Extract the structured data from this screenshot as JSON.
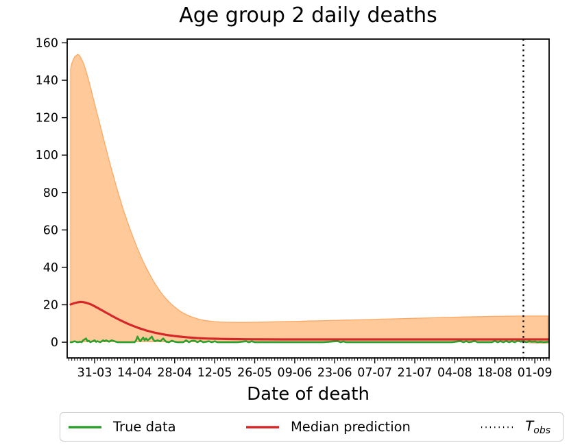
{
  "title": "Age group 2 daily deaths",
  "xlabel": "Date of death",
  "colors": {
    "true_data": "#2ca02c",
    "median_prediction": "#d62728",
    "band_fill": "#ff7f0e",
    "band_edge": "#fca55f",
    "tobs_line": "#000000",
    "axis": "#000000",
    "legend_border": "#cccccc"
  },
  "legend": {
    "items": [
      {
        "label": "True data",
        "color": "#2ca02c",
        "style": "solid"
      },
      {
        "label": "Median prediction",
        "color": "#d62728",
        "style": "solid"
      },
      {
        "label": "T",
        "subscript": "obs",
        "color": "#000000",
        "style": "dotted"
      }
    ]
  },
  "chart_data": {
    "type": "line",
    "title": "Age group 2 daily deaths",
    "xlabel": "Date of death",
    "ylabel": "",
    "grid": false,
    "legend_position": "bottom",
    "xlim_days": [
      -9.6,
      159.0
    ],
    "ylim": [
      -8.4,
      162.0
    ],
    "y_ticks": [
      0,
      20,
      40,
      60,
      80,
      100,
      120,
      140,
      160
    ],
    "x_tick_days": [
      0,
      14,
      28,
      42,
      56,
      70,
      84,
      98,
      112,
      126,
      140,
      154
    ],
    "x_tick_labels": [
      "31-03",
      "14-04",
      "28-04",
      "12-05",
      "26-05",
      "09-06",
      "23-06",
      "07-07",
      "21-07",
      "04-08",
      "18-08",
      "01-09"
    ],
    "x_minor_tick_every_days": 1,
    "t_obs_day": 150,
    "band": {
      "name": "prediction interval",
      "fill": "#ff7f0e",
      "opacity": 0.42,
      "edge": "#fca55f",
      "upper": [
        [
          -8.4,
          146
        ],
        [
          -8,
          149
        ],
        [
          -7,
          152.5
        ],
        [
          -6,
          153.8
        ],
        [
          -5.5,
          153.5
        ],
        [
          -5,
          152.5
        ],
        [
          -4,
          149.5
        ],
        [
          -3,
          145
        ],
        [
          -2,
          139.5
        ],
        [
          -1,
          133.5
        ],
        [
          0,
          127.5
        ],
        [
          1,
          121.5
        ],
        [
          2,
          115.5
        ],
        [
          3,
          109.5
        ],
        [
          4,
          103.5
        ],
        [
          5,
          97.5
        ],
        [
          6,
          92
        ],
        [
          7,
          86.5
        ],
        [
          8,
          81
        ],
        [
          9,
          76
        ],
        [
          10,
          71
        ],
        [
          11,
          66.5
        ],
        [
          12,
          62
        ],
        [
          13,
          58
        ],
        [
          14,
          54
        ],
        [
          15,
          50
        ],
        [
          16,
          46.5
        ],
        [
          17,
          43
        ],
        [
          18,
          40
        ],
        [
          19,
          37
        ],
        [
          20,
          34.2
        ],
        [
          21,
          31.6
        ],
        [
          22,
          29.2
        ],
        [
          23,
          27
        ],
        [
          24,
          25
        ],
        [
          25,
          23.2
        ],
        [
          26,
          21.6
        ],
        [
          27,
          20.1
        ],
        [
          28,
          18.8
        ],
        [
          29,
          17.6
        ],
        [
          30,
          16.5
        ],
        [
          31,
          15.6
        ],
        [
          32,
          14.8
        ],
        [
          33,
          14.1
        ],
        [
          34,
          13.5
        ],
        [
          35,
          13
        ],
        [
          36,
          12.5
        ],
        [
          37,
          12.1
        ],
        [
          38,
          11.8
        ],
        [
          39,
          11.5
        ],
        [
          40,
          11.3
        ],
        [
          42,
          11
        ],
        [
          44,
          10.8
        ],
        [
          46,
          10.7
        ],
        [
          48,
          10.65
        ],
        [
          50,
          10.6
        ],
        [
          52,
          10.6
        ],
        [
          55,
          10.65
        ],
        [
          60,
          10.8
        ],
        [
          65,
          10.95
        ],
        [
          70,
          11.1
        ],
        [
          75,
          11.3
        ],
        [
          80,
          11.5
        ],
        [
          85,
          11.7
        ],
        [
          90,
          11.9
        ],
        [
          95,
          12.1
        ],
        [
          100,
          12.3
        ],
        [
          105,
          12.5
        ],
        [
          110,
          12.7
        ],
        [
          115,
          12.9
        ],
        [
          120,
          13.1
        ],
        [
          125,
          13.3
        ],
        [
          130,
          13.5
        ],
        [
          135,
          13.65
        ],
        [
          140,
          13.8
        ],
        [
          145,
          13.9
        ],
        [
          150,
          14
        ],
        [
          154,
          14
        ],
        [
          158.6,
          14
        ]
      ],
      "lower": [
        [
          -8.4,
          0.35
        ],
        [
          0,
          0.3
        ],
        [
          20,
          0.25
        ],
        [
          40,
          0.25
        ],
        [
          60,
          0.25
        ],
        [
          80,
          0.25
        ],
        [
          100,
          0.25
        ],
        [
          120,
          0.25
        ],
        [
          140,
          0.25
        ],
        [
          148,
          0.25
        ],
        [
          150,
          0.2
        ],
        [
          151,
          0
        ],
        [
          152,
          -0.25
        ],
        [
          154,
          -0.4
        ],
        [
          158.6,
          -0.45
        ]
      ]
    },
    "series": [
      {
        "name": "True data",
        "color": "#2ca02c",
        "width": 2.6,
        "points": [
          [
            -8.4,
            0
          ],
          [
            -8,
            0
          ],
          [
            -7,
            0.5
          ],
          [
            -6,
            0
          ],
          [
            -5,
            0.3
          ],
          [
            -4.5,
            0
          ],
          [
            -4,
            1
          ],
          [
            -3,
            2
          ],
          [
            -2.5,
            0.5
          ],
          [
            -2,
            0.8
          ],
          [
            -1.5,
            0
          ],
          [
            0,
            1
          ],
          [
            0.5,
            0.2
          ],
          [
            1,
            0.5
          ],
          [
            2,
            0
          ],
          [
            3,
            1
          ],
          [
            3.5,
            0.5
          ],
          [
            4,
            1
          ],
          [
            5,
            0.3
          ],
          [
            6,
            1
          ],
          [
            7,
            0.5
          ],
          [
            8,
            0
          ],
          [
            10,
            0
          ],
          [
            12,
            0
          ],
          [
            14,
            0
          ],
          [
            14.5,
            1
          ],
          [
            15,
            3
          ],
          [
            15.5,
            1.5
          ],
          [
            16,
            0.5
          ],
          [
            17,
            2.5
          ],
          [
            17.5,
            1
          ],
          [
            18,
            2
          ],
          [
            18.5,
            1
          ],
          [
            19,
            1.5
          ],
          [
            20,
            3
          ],
          [
            20.5,
            1.5
          ],
          [
            21,
            0.5
          ],
          [
            22,
            1
          ],
          [
            23,
            0.5
          ],
          [
            24,
            2
          ],
          [
            24.5,
            1
          ],
          [
            25,
            0.3
          ],
          [
            26,
            0
          ],
          [
            27,
            0.8
          ],
          [
            28,
            0.3
          ],
          [
            29,
            0
          ],
          [
            31,
            0
          ],
          [
            32,
            1
          ],
          [
            32.5,
            0.5
          ],
          [
            33,
            0
          ],
          [
            34,
            0.8
          ],
          [
            35,
            0.8
          ],
          [
            36,
            0
          ],
          [
            37,
            0.8
          ],
          [
            38,
            0
          ],
          [
            40,
            0.5
          ],
          [
            41,
            0
          ],
          [
            42,
            0.5
          ],
          [
            43,
            0
          ],
          [
            45,
            0
          ],
          [
            50,
            0
          ],
          [
            53,
            0.5
          ],
          [
            54,
            0
          ],
          [
            55,
            0.5
          ],
          [
            56,
            0
          ],
          [
            60,
            0
          ],
          [
            65,
            0
          ],
          [
            70,
            0
          ],
          [
            75,
            0
          ],
          [
            80,
            0
          ],
          [
            85,
            0.6
          ],
          [
            86,
            0
          ],
          [
            87,
            0.4
          ],
          [
            88,
            0
          ],
          [
            95,
            0
          ],
          [
            100,
            0
          ],
          [
            105,
            0
          ],
          [
            110,
            0
          ],
          [
            115,
            0
          ],
          [
            120,
            0
          ],
          [
            125,
            0
          ],
          [
            128,
            0.6
          ],
          [
            129,
            0
          ],
          [
            130,
            0.5
          ],
          [
            131,
            0
          ],
          [
            133,
            0.6
          ],
          [
            134,
            0
          ],
          [
            139,
            0
          ],
          [
            140,
            0.7
          ],
          [
            141,
            0
          ],
          [
            142,
            0.5
          ],
          [
            143,
            0
          ],
          [
            144,
            0.6
          ],
          [
            145,
            0
          ],
          [
            146,
            0.5
          ],
          [
            147,
            0
          ],
          [
            148,
            0.8
          ],
          [
            149,
            0.3
          ],
          [
            150,
            0.6
          ],
          [
            151,
            0
          ],
          [
            152,
            0.5
          ],
          [
            153,
            0.2
          ],
          [
            154,
            0.4
          ],
          [
            155,
            0
          ],
          [
            156,
            0.3
          ],
          [
            157,
            0
          ],
          [
            158.6,
            0.2
          ]
        ]
      },
      {
        "name": "Median prediction",
        "color": "#d62728",
        "width": 3.2,
        "points": [
          [
            -8.4,
            20.2
          ],
          [
            -7,
            20.9
          ],
          [
            -6,
            21.3
          ],
          [
            -5,
            21.5
          ],
          [
            -4,
            21.4
          ],
          [
            -3,
            21.1
          ],
          [
            -2,
            20.6
          ],
          [
            -1,
            20.0
          ],
          [
            0,
            19.2
          ],
          [
            1,
            18.4
          ],
          [
            2,
            17.5
          ],
          [
            3,
            16.7
          ],
          [
            4,
            15.8
          ],
          [
            5,
            15.0
          ],
          [
            6,
            14.1
          ],
          [
            7,
            13.3
          ],
          [
            8,
            12.5
          ],
          [
            9,
            11.7
          ],
          [
            10,
            11.0
          ],
          [
            11,
            10.3
          ],
          [
            12,
            9.6
          ],
          [
            13,
            9.0
          ],
          [
            14,
            8.4
          ],
          [
            15,
            7.8
          ],
          [
            16,
            7.3
          ],
          [
            17,
            6.8
          ],
          [
            18,
            6.3
          ],
          [
            19,
            5.9
          ],
          [
            20,
            5.5
          ],
          [
            21,
            5.1
          ],
          [
            22,
            4.8
          ],
          [
            23,
            4.5
          ],
          [
            24,
            4.2
          ],
          [
            25,
            3.9
          ],
          [
            26,
            3.7
          ],
          [
            27,
            3.5
          ],
          [
            28,
            3.3
          ],
          [
            30,
            2.95
          ],
          [
            32,
            2.65
          ],
          [
            34,
            2.4
          ],
          [
            36,
            2.2
          ],
          [
            38,
            2.05
          ],
          [
            40,
            1.95
          ],
          [
            42,
            1.85
          ],
          [
            44,
            1.78
          ],
          [
            46,
            1.72
          ],
          [
            48,
            1.67
          ],
          [
            50,
            1.63
          ],
          [
            55,
            1.56
          ],
          [
            60,
            1.52
          ],
          [
            65,
            1.5
          ],
          [
            70,
            1.5
          ],
          [
            80,
            1.5
          ],
          [
            90,
            1.5
          ],
          [
            100,
            1.5
          ],
          [
            110,
            1.5
          ],
          [
            120,
            1.5
          ],
          [
            130,
            1.5
          ],
          [
            140,
            1.5
          ],
          [
            150,
            1.5
          ],
          [
            158.6,
            1.5
          ]
        ]
      }
    ]
  }
}
